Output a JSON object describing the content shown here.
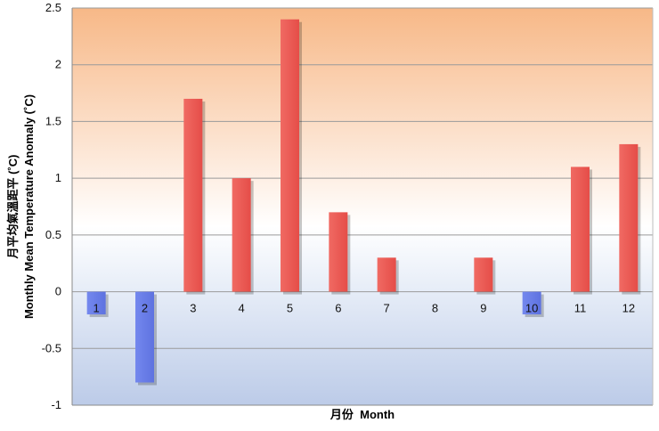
{
  "chart_data": {
    "type": "bar",
    "categories": [
      "1",
      "2",
      "3",
      "4",
      "5",
      "6",
      "7",
      "8",
      "9",
      "10",
      "11",
      "12"
    ],
    "values": [
      -0.2,
      -0.8,
      1.7,
      1.0,
      2.4,
      0.7,
      0.3,
      0.0,
      0.3,
      -0.2,
      1.1,
      1.3
    ],
    "xlabel": "月份  Month",
    "ylabel_zh": "月平均氣溫距平 (˚C)",
    "ylabel_en": "Monthly Mean Temperature Anomaly (˚C)",
    "ylim": [
      -1,
      2.5
    ],
    "yticks": [
      "-1",
      "-0.5",
      "0",
      "0.5",
      "1",
      "1.5",
      "2",
      "2.5"
    ],
    "grid": true,
    "legend": "none",
    "colors": {
      "positive": "#ee5a55",
      "negative": "#6a7ee8",
      "background_top": "#f7b887",
      "background_bottom": "#bccbe8"
    }
  }
}
